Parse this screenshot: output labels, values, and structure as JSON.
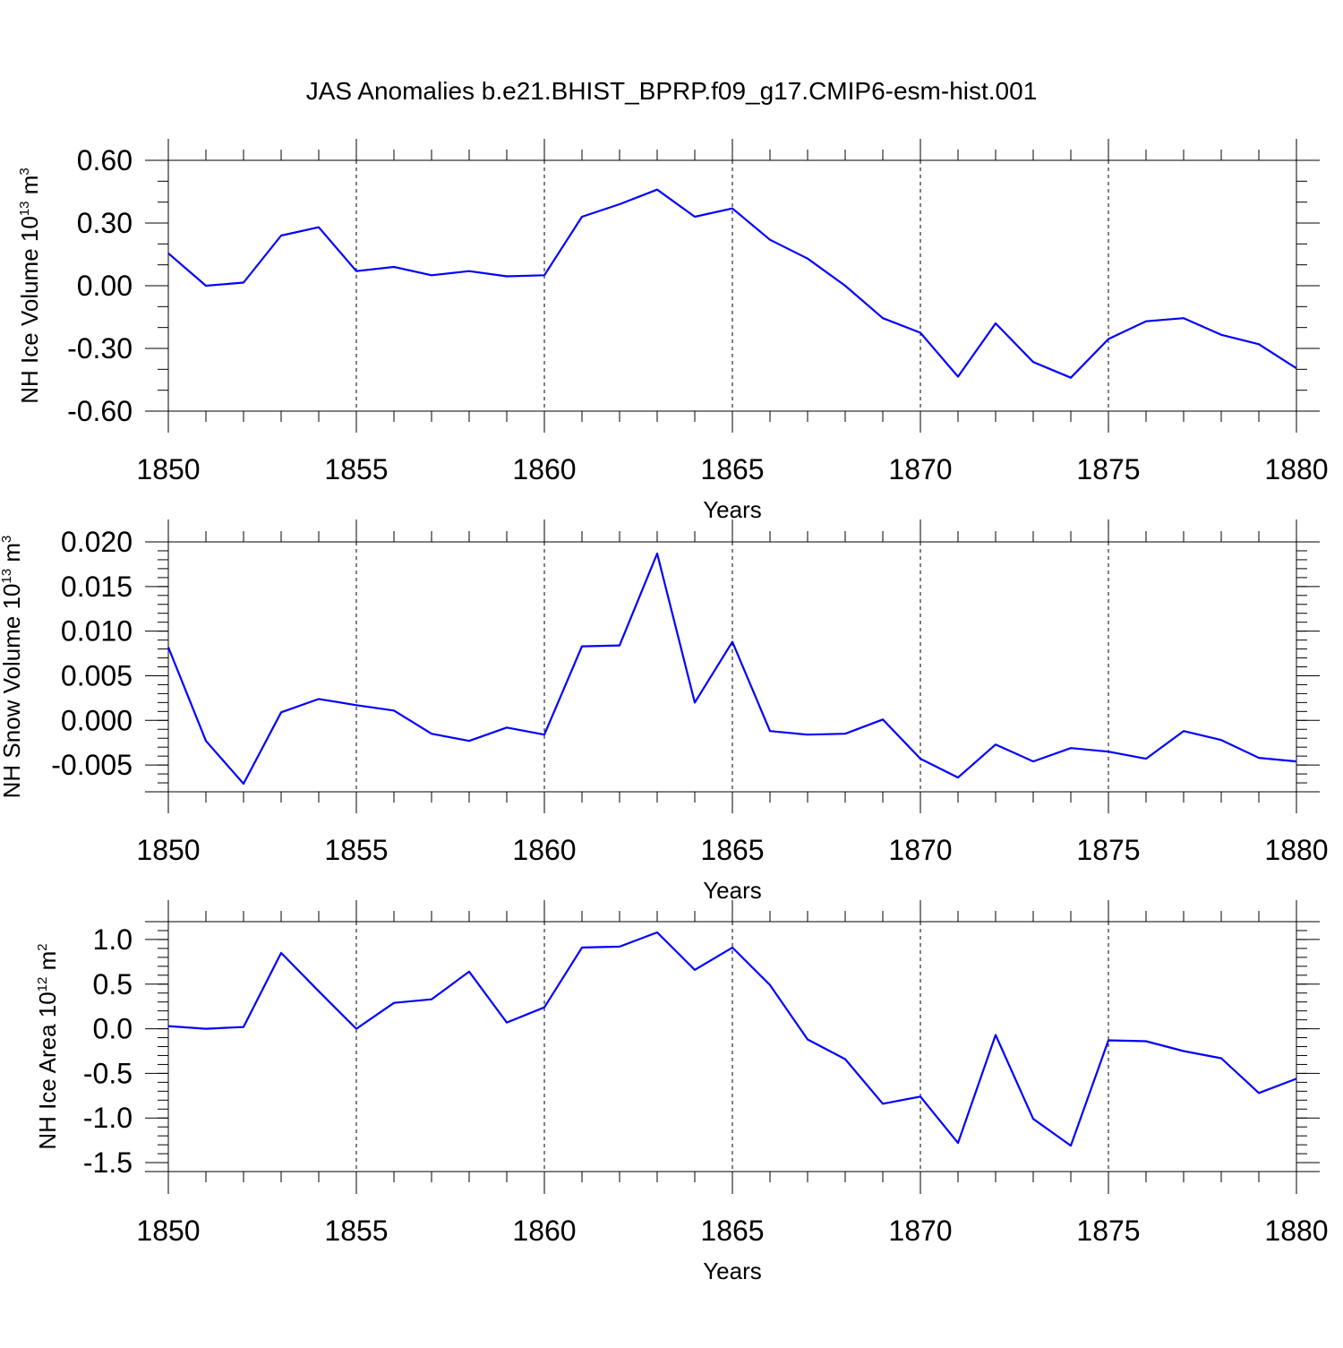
{
  "title": "JAS Anomalies b.e21.BHIST_BPRP.f09_g17.CMIP6-esm-hist.001",
  "colors": {
    "series": "#0000ff",
    "axis": "#000000",
    "grid": "#000000"
  },
  "chart_data": [
    {
      "type": "line",
      "ylabel": "NH Ice Volume 10",
      "ylabel_exp": "13",
      "ylabel_unit": " m",
      "ylabel_unit_exp": "3",
      "xlabel": "Years",
      "xlim": [
        1850,
        1880
      ],
      "ylim": [
        -0.6,
        0.6
      ],
      "xticks": [
        1850,
        1855,
        1860,
        1865,
        1870,
        1875,
        1880
      ],
      "xtick_labels": [
        "1850",
        "1855",
        "1860",
        "1865",
        "1870",
        "1875",
        "1880"
      ],
      "yticks": [
        0.6,
        0.3,
        0.0,
        -0.3,
        -0.6
      ],
      "ytick_labels": [
        "0.60",
        "0.30",
        "0.00",
        "-0.30",
        "-0.60"
      ],
      "yminor_step": 0.1,
      "x": [
        1850,
        1851,
        1852,
        1853,
        1854,
        1855,
        1856,
        1857,
        1858,
        1859,
        1860,
        1861,
        1862,
        1863,
        1864,
        1865,
        1866,
        1867,
        1868,
        1869,
        1870,
        1871,
        1872,
        1873,
        1874,
        1875,
        1876,
        1877,
        1878,
        1879,
        1880
      ],
      "values": [
        0.155,
        0.0,
        0.015,
        0.24,
        0.28,
        0.07,
        0.09,
        0.05,
        0.07,
        0.045,
        0.05,
        0.33,
        0.39,
        0.46,
        0.33,
        0.37,
        0.22,
        0.13,
        0.0,
        -0.155,
        -0.225,
        -0.435,
        -0.18,
        -0.365,
        -0.44,
        -0.255,
        -0.17,
        -0.155,
        -0.235,
        -0.28,
        -0.395
      ]
    },
    {
      "type": "line",
      "ylabel": "NH Snow Volume 10",
      "ylabel_exp": "13",
      "ylabel_unit": " m",
      "ylabel_unit_exp": "3",
      "xlabel": "Years",
      "xlim": [
        1850,
        1880
      ],
      "ylim": [
        -0.008,
        0.02
      ],
      "xticks": [
        1850,
        1855,
        1860,
        1865,
        1870,
        1875,
        1880
      ],
      "xtick_labels": [
        "1850",
        "1855",
        "1860",
        "1865",
        "1870",
        "1875",
        "1880"
      ],
      "yticks": [
        0.02,
        0.015,
        0.01,
        0.005,
        0.0,
        -0.005
      ],
      "ytick_labels": [
        "0.020",
        "0.015",
        "0.010",
        "0.005",
        "0.000",
        "-0.005"
      ],
      "yminor_step": 0.001,
      "x": [
        1850,
        1851,
        1852,
        1853,
        1854,
        1855,
        1856,
        1857,
        1858,
        1859,
        1860,
        1861,
        1862,
        1863,
        1864,
        1865,
        1866,
        1867,
        1868,
        1869,
        1870,
        1871,
        1872,
        1873,
        1874,
        1875,
        1876,
        1877,
        1878,
        1879,
        1880
      ],
      "values": [
        0.0082,
        -0.0023,
        -0.0071,
        0.0009,
        0.0024,
        0.0017,
        0.0011,
        -0.0015,
        -0.0023,
        -0.0008,
        -0.0016,
        0.0083,
        0.0084,
        0.0187,
        0.002,
        0.0088,
        -0.0012,
        -0.0016,
        -0.0015,
        0.0001,
        -0.0043,
        -0.0064,
        -0.0027,
        -0.0046,
        -0.0031,
        -0.0035,
        -0.0043,
        -0.0012,
        -0.0022,
        -0.0042,
        -0.0046
      ]
    },
    {
      "type": "line",
      "ylabel": "NH Ice Area 10",
      "ylabel_exp": "12",
      "ylabel_unit": " m",
      "ylabel_unit_exp": "2",
      "xlabel": "Years",
      "xlim": [
        1850,
        1880
      ],
      "ylim": [
        -1.6,
        1.2
      ],
      "xticks": [
        1850,
        1855,
        1860,
        1865,
        1870,
        1875,
        1880
      ],
      "xtick_labels": [
        "1850",
        "1855",
        "1860",
        "1865",
        "1870",
        "1875",
        "1880"
      ],
      "yticks": [
        1.0,
        0.5,
        0.0,
        -0.5,
        -1.0,
        -1.5
      ],
      "ytick_labels": [
        "1.0",
        "0.5",
        "0.0",
        "-0.5",
        "-1.0",
        "-1.5"
      ],
      "yminor_step": 0.1,
      "x": [
        1850,
        1851,
        1852,
        1853,
        1854,
        1855,
        1856,
        1857,
        1858,
        1859,
        1860,
        1861,
        1862,
        1863,
        1864,
        1865,
        1866,
        1867,
        1868,
        1869,
        1870,
        1871,
        1872,
        1873,
        1874,
        1875,
        1876,
        1877,
        1878,
        1879,
        1880
      ],
      "values": [
        0.03,
        0.0,
        0.02,
        0.85,
        0.42,
        0.0,
        0.29,
        0.33,
        0.64,
        0.07,
        0.24,
        0.91,
        0.92,
        1.08,
        0.66,
        0.91,
        0.49,
        -0.12,
        -0.34,
        -0.84,
        -0.76,
        -1.28,
        -0.07,
        -1.01,
        -1.31,
        -0.13,
        -0.14,
        -0.25,
        -0.33,
        -0.72,
        -0.56
      ]
    }
  ]
}
